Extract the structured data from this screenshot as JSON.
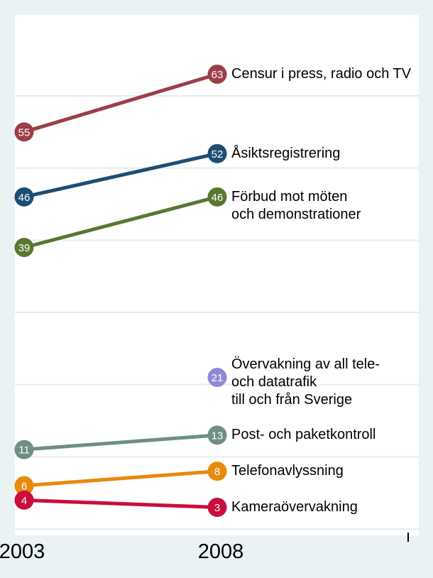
{
  "chart_data": {
    "type": "line",
    "subtype": "slopegraph",
    "x_categories": [
      "2003",
      "2008"
    ],
    "ylabel": "",
    "xlabel": "",
    "title": "",
    "ylim": [
      0,
      65
    ],
    "gridline_values": [
      0,
      10,
      20,
      30,
      40,
      50,
      60
    ],
    "grid": "horizontal",
    "legend_position": "labels-right-of-2008-points",
    "series": [
      {
        "name": "Censur i press, radio och TV",
        "label_lines": [
          "Censur i press, radio och TV"
        ],
        "color": "#9B3E47",
        "values": [
          55,
          63
        ],
        "label_dy": 0
      },
      {
        "name": "Åsiktsregistrering",
        "label_lines": [
          "Åsiktsregistrering"
        ],
        "color": "#1E4D74",
        "values": [
          46,
          52
        ],
        "label_dy": 0
      },
      {
        "name": "Förbud mot möten och demonstrationer",
        "label_lines": [
          "Förbud mot möten",
          "och demonstrationer"
        ],
        "color": "#57782E",
        "values": [
          39,
          46
        ],
        "label_dy": 0
      },
      {
        "name": "Övervakning av all tele- och datatrafik till och från Sverige",
        "label_lines": [
          "Övervakning av all tele-",
          "och datatrafik",
          "till och från Sverige"
        ],
        "color": "#9189D3",
        "values": [
          null,
          21
        ],
        "label_dy": -18
      },
      {
        "name": "Post- och paketkontroll",
        "label_lines": [
          "Post- och paketkontroll"
        ],
        "color": "#6F8E85",
        "values": [
          11,
          13
        ],
        "label_dy": 0
      },
      {
        "name": "Telefonavlyssning",
        "label_lines": [
          "Telefonavlyssning"
        ],
        "color": "#E8890C",
        "values": [
          6,
          8
        ],
        "label_dy": 0
      },
      {
        "name": "Kameraövervakning",
        "label_lines": [
          "Kameraövervakning"
        ],
        "color": "#C90E3D",
        "values": [
          4,
          3
        ],
        "label_dy": 0
      }
    ]
  },
  "colors": {
    "background": "#EAF2F3",
    "plot_background": "#FFFFFF",
    "gridline": "#E3EDF0",
    "label_text": "#000000",
    "dot_number_text": "#FFFFFF",
    "axis_tick": "#000000"
  }
}
